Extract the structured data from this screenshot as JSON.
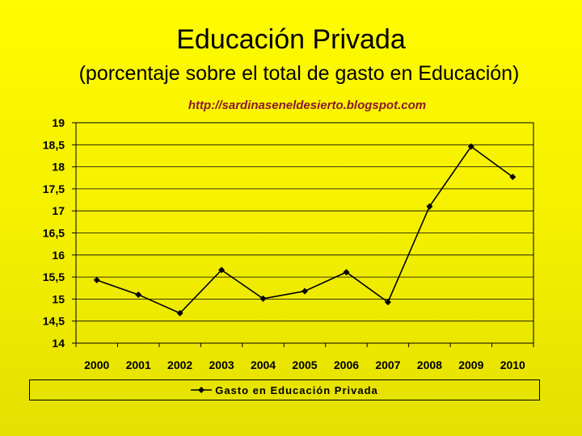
{
  "header": {
    "title": "Educación Privada",
    "subtitle": "(porcentaje sobre el total de gasto en Educación)",
    "url": "http://sardinaseneldesierto.blogspot.com"
  },
  "chart_data": {
    "type": "line",
    "categories": [
      "2000",
      "2001",
      "2002",
      "2003",
      "2004",
      "2005",
      "2006",
      "2007",
      "2008",
      "2009",
      "2010"
    ],
    "series": [
      {
        "name": "Gasto en Educación Privada",
        "values": [
          15.43,
          15.1,
          14.68,
          15.66,
          15.01,
          15.18,
          15.61,
          14.93,
          17.1,
          18.46,
          17.77
        ],
        "color": "#000000"
      }
    ],
    "ylim": [
      14,
      19
    ],
    "yticks": [
      "14",
      "14,5",
      "15",
      "15,5",
      "16",
      "16,5",
      "17",
      "17,5",
      "18",
      "18,5",
      "19"
    ],
    "grid": true,
    "legend": "bottom"
  }
}
